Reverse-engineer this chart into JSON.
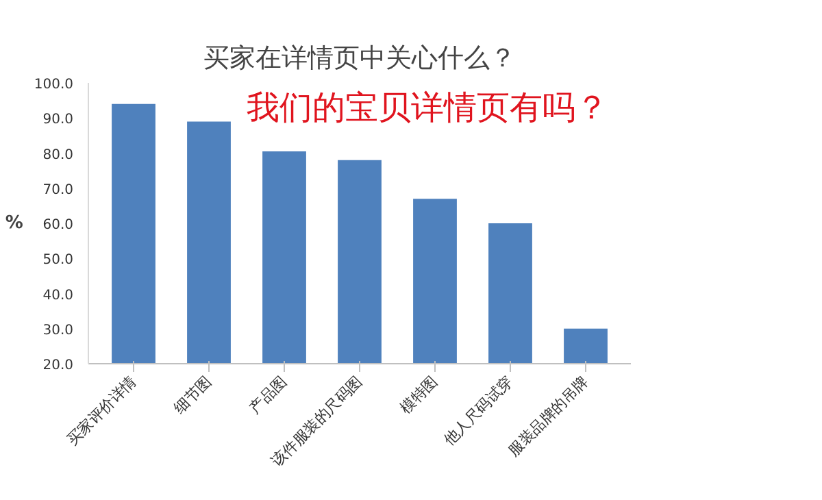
{
  "chart_data": {
    "type": "bar",
    "title": "买家在详情页中关心什么？",
    "ylabel": "%",
    "categories": [
      "买家评价详情",
      "细节图",
      "产品图",
      "该件服装的尺码图",
      "模特图",
      "他人尺码试穿",
      "服装品牌的吊牌"
    ],
    "values": [
      94,
      89,
      80.5,
      78,
      67,
      60,
      30
    ],
    "color": "#4f81bd",
    "ylim": [
      20,
      100
    ],
    "yticks": [
      {
        "value": 20,
        "label": "20.0"
      },
      {
        "value": 30,
        "label": "30.0"
      },
      {
        "value": 40,
        "label": "40.0"
      },
      {
        "value": 50,
        "label": "50.0"
      },
      {
        "value": 60,
        "label": "60.0"
      },
      {
        "value": 70,
        "label": "70.0"
      },
      {
        "value": 80,
        "label": "80.0"
      },
      {
        "value": 90,
        "label": "90.0"
      },
      {
        "value": 100,
        "label": "100.0"
      }
    ],
    "grid": false,
    "annotations": [
      "我们的宝贝详情页有吗？"
    ]
  }
}
